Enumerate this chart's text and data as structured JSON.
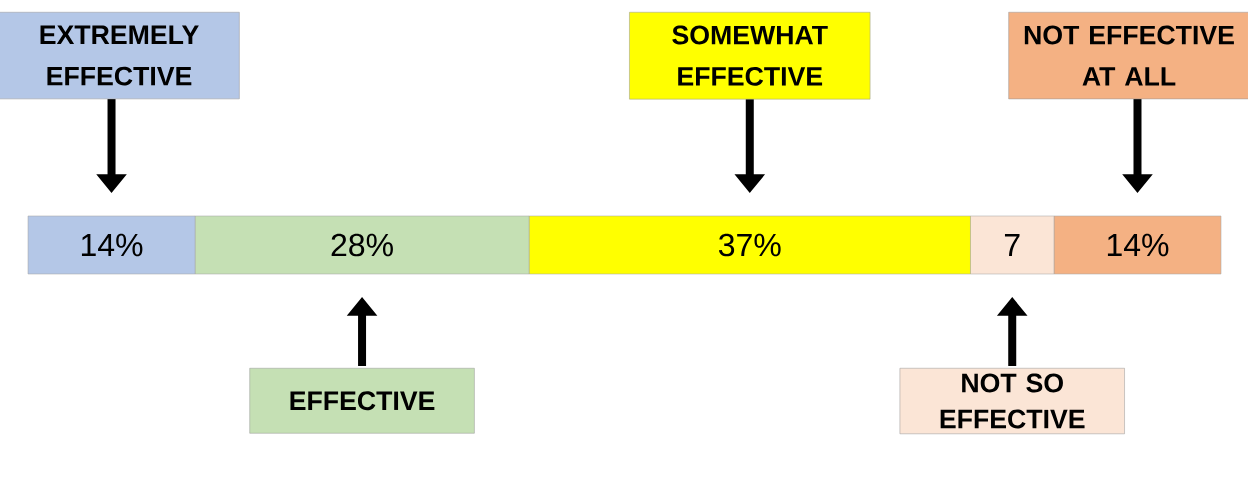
{
  "chart_data": {
    "type": "bar",
    "orientation": "horizontal",
    "stacked": true,
    "categories": [
      null
    ],
    "series": [
      {
        "name": "EXTREMELY EFFECTIVE",
        "color": "#b4c7e7",
        "values": [
          14
        ],
        "value_labels": [
          "14%"
        ]
      },
      {
        "name": "EFFECTIVE",
        "color": "#c5e0b4",
        "values": [
          28
        ],
        "value_labels": [
          "28%"
        ]
      },
      {
        "name": "SOMEWHAT EFFECTIVE",
        "color": "#ffff00",
        "values": [
          37
        ],
        "value_labels": [
          "37%"
        ]
      },
      {
        "name": "NOT SO EFFECTIVE",
        "color": "#fbe5d6",
        "values": [
          7
        ],
        "value_labels": [
          "7"
        ]
      },
      {
        "name": "NOT EFFECTIVE AT ALL",
        "color": "#f4b183",
        "values": [
          14
        ],
        "value_labels": [
          "14%"
        ]
      }
    ]
  }
}
